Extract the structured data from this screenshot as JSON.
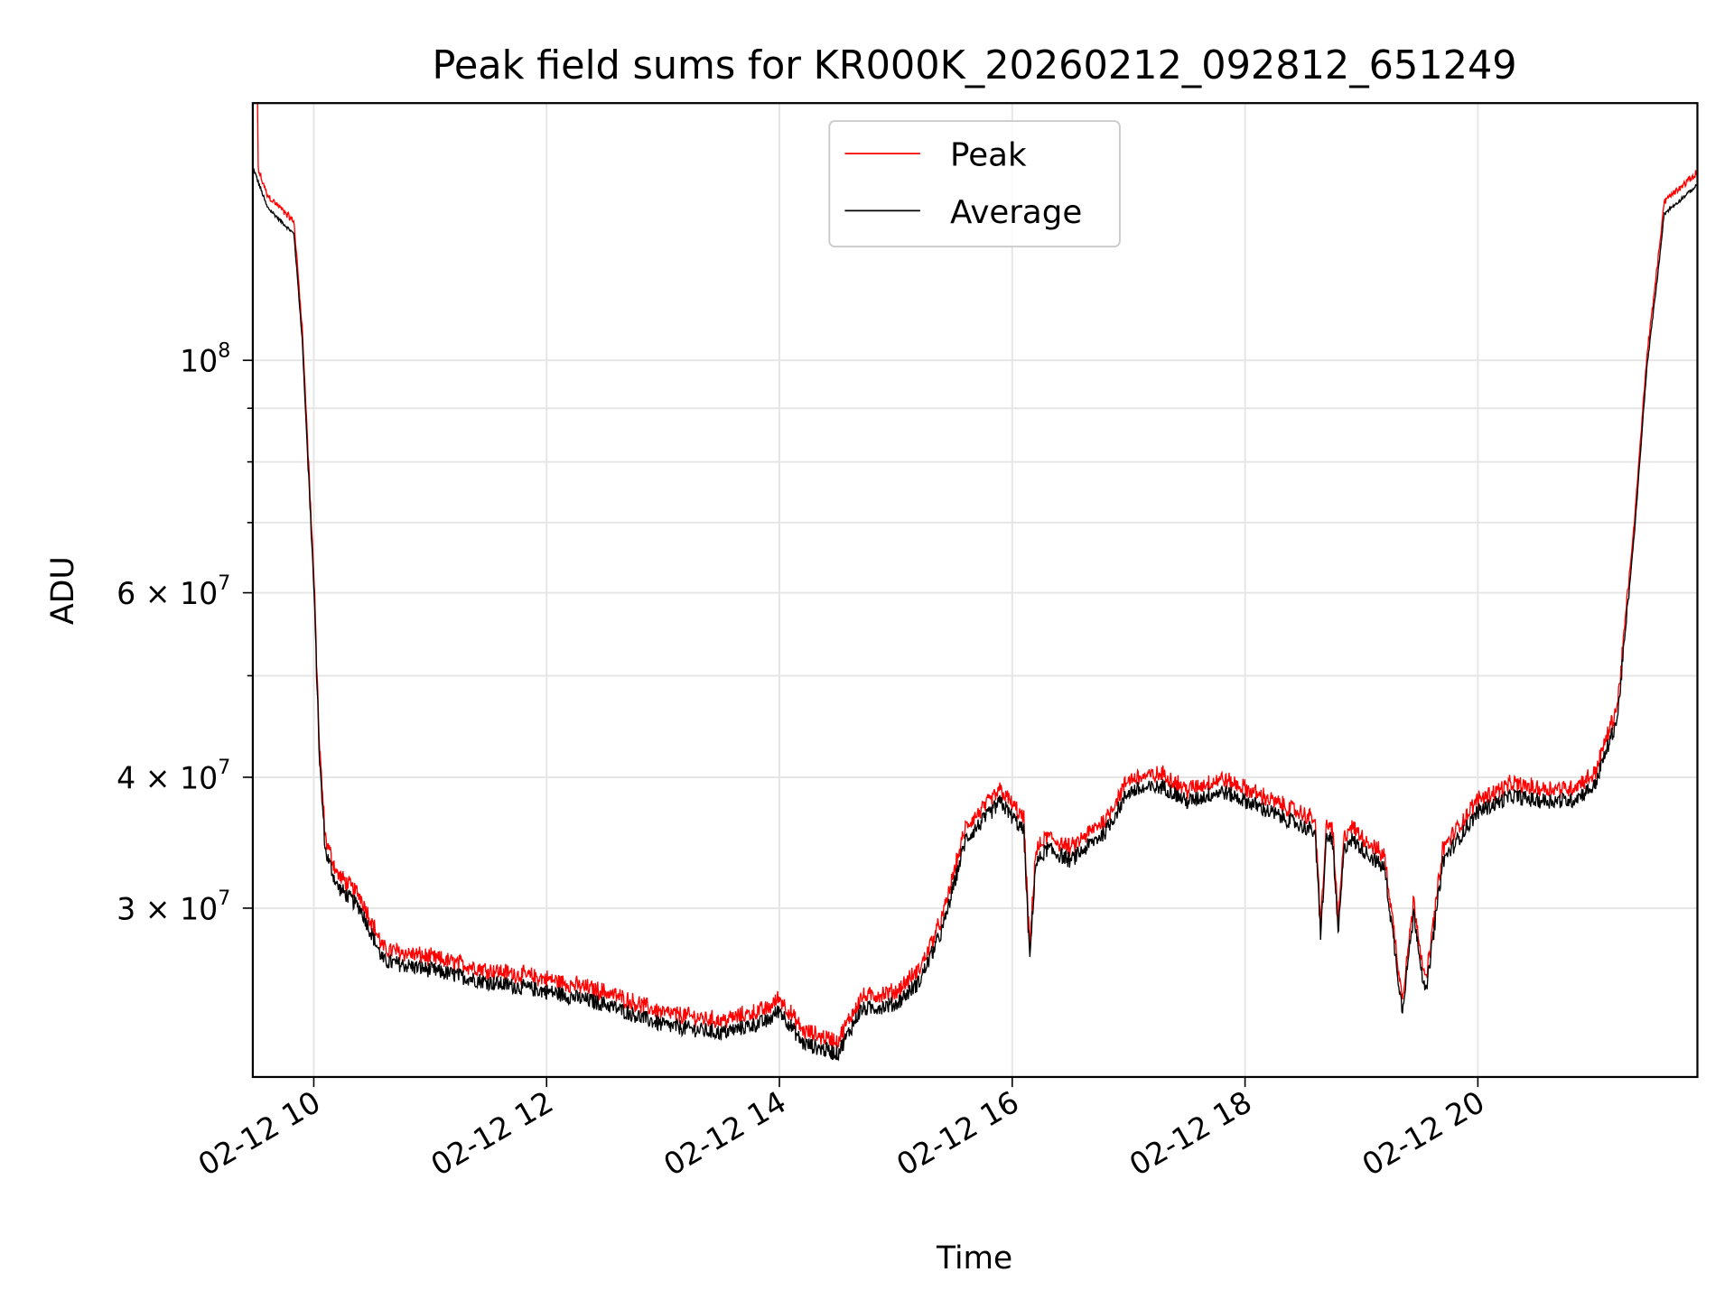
{
  "chart_data": {
    "type": "line",
    "title": "Peak field sums for KR000K_20260212_092812_651249",
    "xlabel": "Time",
    "ylabel": "ADU",
    "yscale": "log",
    "xlim_hours": [
      9.476,
      21.886
    ],
    "ylim": [
      20700000,
      176000000
    ],
    "x_ticks": [
      {
        "hour": 10,
        "label": "02-12 10"
      },
      {
        "hour": 12,
        "label": "02-12 12"
      },
      {
        "hour": 14,
        "label": "02-12 14"
      },
      {
        "hour": 16,
        "label": "02-12 16"
      },
      {
        "hour": 18,
        "label": "02-12 18"
      },
      {
        "hour": 20,
        "label": "02-12 20"
      }
    ],
    "y_major_ticks": [
      {
        "value": 100000000,
        "base": "10",
        "exp": "8"
      },
      {
        "value": 60000000,
        "base": "6 × 10",
        "exp": "7"
      },
      {
        "value": 40000000,
        "base": "4 × 10",
        "exp": "7"
      },
      {
        "value": 30000000,
        "base": "3 × 10",
        "exp": "7"
      }
    ],
    "y_minor_ticks": [
      50000000,
      70000000,
      80000000,
      90000000
    ],
    "grid": true,
    "legend": {
      "placement": "top-center",
      "entries": [
        {
          "name": "Peak",
          "color": "#ff0000"
        },
        {
          "name": "Average",
          "color": "#000000"
        }
      ]
    },
    "series_keypoints_hours_vs_1e7ADU": {
      "x": [
        9.476,
        9.6,
        9.8,
        9.83,
        9.9,
        10.0,
        10.05,
        10.1,
        10.2,
        10.4,
        10.5,
        10.6,
        11.0,
        11.5,
        12.0,
        12.5,
        13.0,
        13.5,
        13.9,
        14.0,
        14.2,
        14.5,
        14.7,
        15.0,
        15.2,
        15.4,
        15.6,
        15.9,
        16.1,
        16.15,
        16.2,
        16.3,
        16.5,
        16.8,
        17.0,
        17.3,
        17.5,
        17.8,
        18.0,
        18.3,
        18.6,
        18.65,
        18.7,
        18.75,
        18.8,
        18.85,
        18.9,
        19.2,
        19.35,
        19.45,
        19.55,
        19.7,
        20.0,
        20.3,
        20.5,
        20.8,
        21.0,
        21.2,
        21.35,
        21.45,
        21.55,
        21.6,
        21.886
      ],
      "average": [
        15.3,
        14.0,
        13.3,
        13.2,
        10.5,
        6.1,
        4.14,
        3.4,
        3.15,
        3.0,
        2.83,
        2.67,
        2.62,
        2.55,
        2.5,
        2.43,
        2.32,
        2.28,
        2.34,
        2.4,
        2.23,
        2.18,
        2.4,
        2.43,
        2.55,
        2.86,
        3.49,
        3.79,
        3.55,
        2.67,
        3.3,
        3.42,
        3.33,
        3.55,
        3.88,
        3.92,
        3.79,
        3.88,
        3.8,
        3.67,
        3.55,
        2.83,
        3.5,
        3.5,
        2.83,
        3.4,
        3.5,
        3.27,
        2.4,
        2.97,
        2.47,
        3.33,
        3.71,
        3.84,
        3.8,
        3.8,
        3.92,
        4.56,
        6.95,
        9.8,
        12.2,
        13.8,
        14.7
      ],
      "peak_ratio_to_average": 1.025,
      "peak_initial_spike": 17.6
    }
  }
}
